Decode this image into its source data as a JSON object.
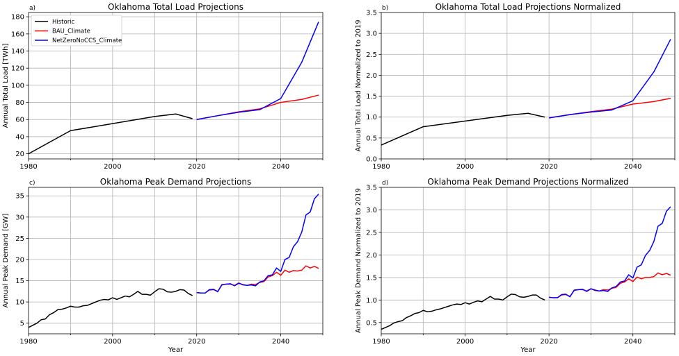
{
  "colors": {
    "historic": "#000000",
    "bau": "#ff0000",
    "netzero": "#0000ff",
    "grid": "#b0b0b0"
  },
  "legend": [
    "Historic",
    "BAU_Climate",
    "NetZeroNoCCS_Climate"
  ],
  "chart_data": [
    {
      "type": "line",
      "panel_label": "a)",
      "title": "Oklahoma Total Load Projections",
      "xlabel": "",
      "ylabel": "Annual Total Load [TWh]",
      "xlim": [
        1980,
        2050
      ],
      "ylim": [
        14,
        185
      ],
      "xticks": [
        1980,
        2000,
        2020,
        2040
      ],
      "yticks": [
        20,
        40,
        60,
        80,
        100,
        120,
        140,
        160,
        180
      ],
      "grid": true,
      "legend_position": "upper-left",
      "series": [
        {
          "name": "Historic",
          "x": [
            1980,
            1990,
            2010,
            2015,
            2019
          ],
          "y": [
            20,
            47,
            63.5,
            66.5,
            61
          ]
        },
        {
          "name": "BAU_Climate",
          "x": [
            2020,
            2025,
            2030,
            2035,
            2040,
            2045,
            2049
          ],
          "y": [
            60,
            64.5,
            69,
            72.5,
            80,
            83.5,
            88.5
          ]
        },
        {
          "name": "NetZeroNoCCS_Climate",
          "x": [
            2020,
            2025,
            2030,
            2035,
            2040,
            2045,
            2049
          ],
          "y": [
            60,
            64.5,
            68.5,
            71.5,
            84.5,
            127,
            174
          ]
        }
      ]
    },
    {
      "type": "line",
      "panel_label": "b)",
      "title": "Oklahoma Total Load Projections Normalized",
      "xlabel": "",
      "ylabel": "Annual Total Load Normalized to 2019",
      "xlim": [
        1980,
        2050
      ],
      "ylim": [
        0,
        3.5
      ],
      "xticks": [
        1980,
        2000,
        2020,
        2040
      ],
      "yticks": [
        0.0,
        0.5,
        1.0,
        1.5,
        2.0,
        2.5,
        3.0,
        3.5
      ],
      "grid": true,
      "legend_position": "none",
      "series": [
        {
          "name": "Historic",
          "x": [
            1980,
            1990,
            2010,
            2015,
            2019
          ],
          "y": [
            0.33,
            0.77,
            1.04,
            1.09,
            1.0
          ]
        },
        {
          "name": "BAU_Climate",
          "x": [
            2020,
            2025,
            2030,
            2035,
            2040,
            2045,
            2049
          ],
          "y": [
            0.98,
            1.06,
            1.13,
            1.19,
            1.31,
            1.37,
            1.45
          ]
        },
        {
          "name": "NetZeroNoCCS_Climate",
          "x": [
            2020,
            2025,
            2030,
            2035,
            2040,
            2045,
            2049
          ],
          "y": [
            0.98,
            1.06,
            1.12,
            1.17,
            1.39,
            2.08,
            2.86
          ]
        }
      ]
    },
    {
      "type": "line",
      "panel_label": "c)",
      "title": "Oklahoma Peak Demand Projections",
      "xlabel": "Year",
      "ylabel": "Annual Peak Demand [GW]",
      "xlim": [
        1980,
        2050
      ],
      "ylim": [
        2.5,
        37
      ],
      "xticks": [
        1980,
        2000,
        2020,
        2040
      ],
      "yticks": [
        5,
        10,
        15,
        20,
        25,
        30,
        35
      ],
      "grid": true,
      "legend_position": "none",
      "series": [
        {
          "name": "Historic",
          "x": [
            1980,
            1981,
            1982,
            1983,
            1984,
            1985,
            1986,
            1987,
            1988,
            1989,
            1990,
            1991,
            1992,
            1993,
            1994,
            1995,
            1996,
            1997,
            1998,
            1999,
            2000,
            2001,
            2002,
            2003,
            2004,
            2005,
            2006,
            2007,
            2008,
            2009,
            2010,
            2011,
            2012,
            2013,
            2014,
            2015,
            2016,
            2017,
            2018,
            2019
          ],
          "y": [
            4.0,
            4.5,
            5.0,
            5.8,
            6.0,
            7.0,
            7.5,
            8.2,
            8.3,
            8.6,
            9.0,
            8.8,
            8.8,
            9.1,
            9.2,
            9.6,
            10.0,
            10.4,
            10.6,
            10.5,
            11.0,
            10.6,
            11.0,
            11.4,
            11.2,
            11.8,
            12.5,
            11.8,
            11.8,
            11.6,
            12.4,
            13.1,
            13.0,
            12.4,
            12.3,
            12.5,
            12.9,
            12.8,
            12.0,
            11.5
          ]
        },
        {
          "name": "BAU_Climate",
          "x": [
            2020,
            2021,
            2022,
            2023,
            2024,
            2025,
            2026,
            2027,
            2028,
            2029,
            2030,
            2031,
            2032,
            2033,
            2034,
            2035,
            2036,
            2037,
            2038,
            2039,
            2040,
            2041,
            2042,
            2043,
            2044,
            2045,
            2046,
            2047,
            2048,
            2049
          ],
          "y": [
            12.2,
            12.1,
            12.1,
            12.8,
            12.9,
            12.5,
            14.0,
            14.2,
            14.2,
            13.9,
            14.5,
            14.0,
            13.9,
            14.2,
            14.1,
            14.6,
            14.8,
            15.9,
            16.2,
            17.0,
            16.3,
            17.5,
            17.0,
            17.4,
            17.3,
            17.5,
            18.5,
            18.0,
            18.4,
            17.9
          ]
        },
        {
          "name": "NetZeroNoCCS_Climate",
          "x": [
            2020,
            2021,
            2022,
            2023,
            2024,
            2025,
            2026,
            2027,
            2028,
            2029,
            2030,
            2031,
            2032,
            2033,
            2034,
            2035,
            2036,
            2037,
            2038,
            2039,
            2040,
            2041,
            2042,
            2043,
            2044,
            2045,
            2046,
            2047,
            2048,
            2049
          ],
          "y": [
            12.2,
            12.1,
            12.1,
            12.9,
            13.0,
            12.4,
            14.1,
            14.2,
            14.3,
            13.8,
            14.4,
            14.1,
            13.9,
            14.0,
            13.8,
            14.7,
            15.0,
            16.2,
            16.4,
            18.0,
            17.2,
            20.0,
            20.5,
            23.0,
            24.2,
            26.5,
            30.5,
            31.2,
            34.3,
            35.4
          ]
        }
      ]
    },
    {
      "type": "line",
      "panel_label": "d)",
      "title": "Oklahoma Peak Demand Projections Normalized",
      "xlabel": "Year",
      "ylabel": "Annual Peak Demand Normalized to 2019",
      "xlim": [
        1980,
        2050
      ],
      "ylim": [
        0.25,
        3.5
      ],
      "xticks": [
        1980,
        2000,
        2020,
        2040
      ],
      "yticks": [
        0.5,
        1.0,
        1.5,
        2.0,
        2.5,
        3.0,
        3.5
      ],
      "grid": true,
      "legend_position": "none",
      "series": [
        {
          "name": "Historic",
          "x": [
            1980,
            1981,
            1982,
            1983,
            1984,
            1985,
            1986,
            1987,
            1988,
            1989,
            1990,
            1991,
            1992,
            1993,
            1994,
            1995,
            1996,
            1997,
            1998,
            1999,
            2000,
            2001,
            2002,
            2003,
            2004,
            2005,
            2006,
            2007,
            2008,
            2009,
            2010,
            2011,
            2012,
            2013,
            2014,
            2015,
            2016,
            2017,
            2018,
            2019
          ],
          "y": [
            0.35,
            0.39,
            0.43,
            0.49,
            0.52,
            0.54,
            0.61,
            0.65,
            0.7,
            0.72,
            0.77,
            0.74,
            0.75,
            0.78,
            0.8,
            0.83,
            0.86,
            0.89,
            0.91,
            0.9,
            0.94,
            0.91,
            0.95,
            0.98,
            0.96,
            1.02,
            1.08,
            1.02,
            1.02,
            1.0,
            1.07,
            1.13,
            1.12,
            1.07,
            1.06,
            1.08,
            1.11,
            1.11,
            1.04,
            1.0
          ]
        },
        {
          "name": "BAU_Climate",
          "x": [
            2020,
            2021,
            2022,
            2023,
            2024,
            2025,
            2026,
            2027,
            2028,
            2029,
            2030,
            2031,
            2032,
            2033,
            2034,
            2035,
            2036,
            2037,
            2038,
            2039,
            2040,
            2041,
            2042,
            2043,
            2044,
            2045,
            2046,
            2047,
            2048,
            2049
          ],
          "y": [
            1.06,
            1.05,
            1.05,
            1.11,
            1.12,
            1.08,
            1.21,
            1.23,
            1.23,
            1.2,
            1.25,
            1.21,
            1.2,
            1.23,
            1.22,
            1.26,
            1.28,
            1.37,
            1.4,
            1.47,
            1.41,
            1.51,
            1.47,
            1.5,
            1.5,
            1.52,
            1.6,
            1.56,
            1.59,
            1.55
          ]
        },
        {
          "name": "NetZeroNoCCS_Climate",
          "x": [
            2020,
            2021,
            2022,
            2023,
            2024,
            2025,
            2026,
            2027,
            2028,
            2029,
            2030,
            2031,
            2032,
            2033,
            2034,
            2035,
            2036,
            2037,
            2038,
            2039,
            2040,
            2041,
            2042,
            2043,
            2044,
            2045,
            2046,
            2047,
            2048,
            2049
          ],
          "y": [
            1.06,
            1.05,
            1.05,
            1.12,
            1.13,
            1.07,
            1.22,
            1.23,
            1.24,
            1.19,
            1.25,
            1.22,
            1.2,
            1.21,
            1.19,
            1.27,
            1.3,
            1.4,
            1.42,
            1.56,
            1.49,
            1.73,
            1.78,
            1.99,
            2.1,
            2.3,
            2.64,
            2.7,
            2.97,
            3.07
          ]
        }
      ]
    }
  ]
}
